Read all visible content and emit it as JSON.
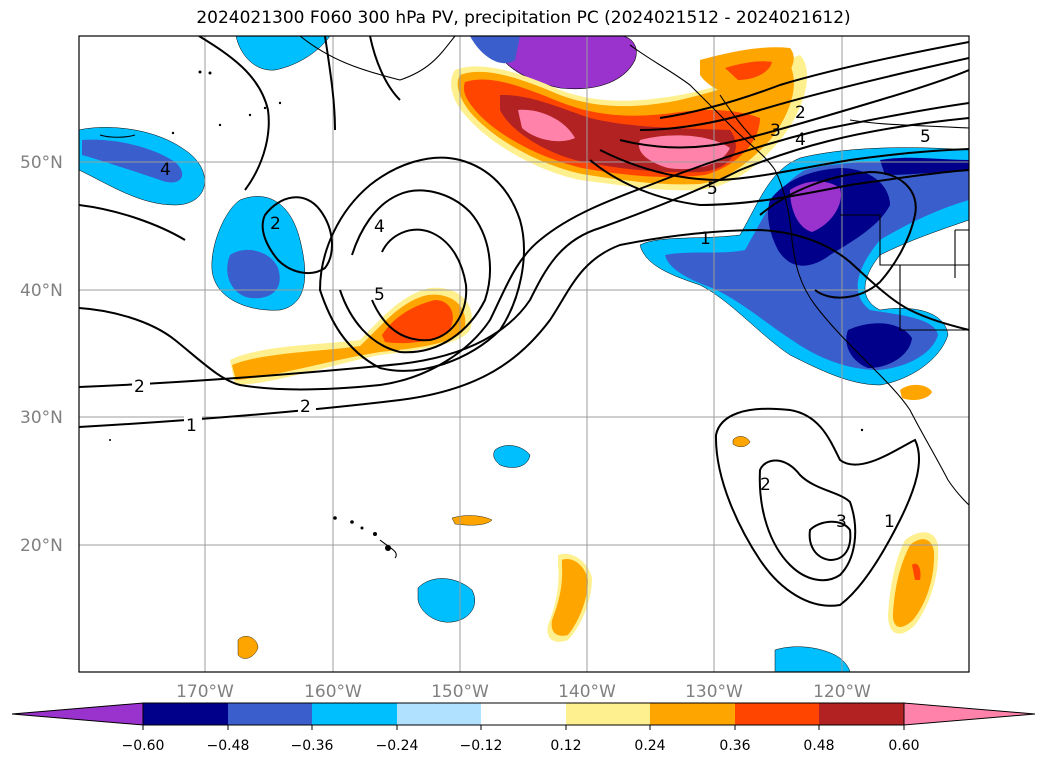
{
  "title": "2024021300 F060 300 hPa PV, precipitation PC (2024021512 - 2024021612)",
  "map": {
    "lat_labels": [
      "50°N",
      "40°N",
      "30°N",
      "20°N"
    ],
    "lon_labels": [
      "170°W",
      "160°W",
      "150°W",
      "140°W",
      "130°W",
      "120°W"
    ],
    "grid": true,
    "pv_contour_labels": [
      "1",
      "2",
      "3",
      "4",
      "5"
    ]
  },
  "colorbar": {
    "ticks": [
      "−0.60",
      "−0.48",
      "−0.36",
      "−0.24",
      "−0.12",
      "0.12",
      "0.24",
      "0.36",
      "0.48",
      "0.60"
    ],
    "colors": [
      "#9a32cd",
      "#00008b",
      "#3a5fcd",
      "#00bfff",
      "#b0e2ff",
      "#ffffff",
      "#fff08f",
      "#ffa500",
      "#ff4500",
      "#b22222",
      "#ff82ab"
    ]
  },
  "colors": {
    "purple": "#9a32cd",
    "navy": "#00008b",
    "royal": "#3a5fcd",
    "sky": "#00bfff",
    "lightsky": "#b0e2ff",
    "yellow": "#fff08f",
    "orange": "#ffa500",
    "redorange": "#ff4500",
    "firebrick": "#b22222",
    "pink": "#ff82ab"
  }
}
